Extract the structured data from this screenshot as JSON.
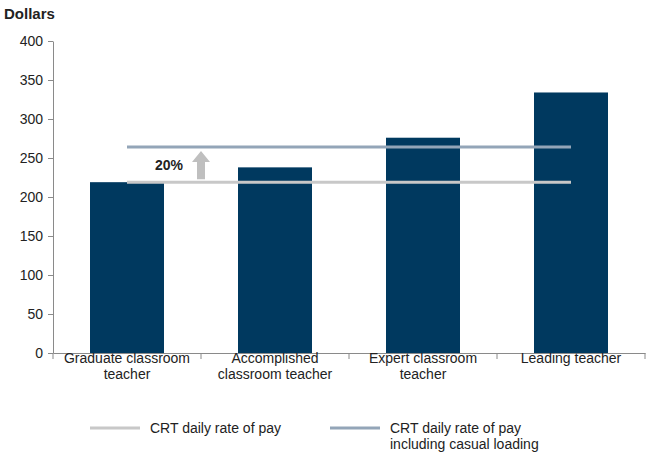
{
  "chart_data": {
    "type": "bar",
    "y_label": "Dollars",
    "categories": [
      "Graduate classroom teacher",
      "Accomplished classroom teacher",
      "Expert classroom teacher",
      "Leading teacher"
    ],
    "series": [
      {
        "type": "bar",
        "color": "#00395f",
        "values": [
          219,
          238,
          276,
          334
        ]
      },
      {
        "name": "CRT daily rate of pay",
        "type": "line",
        "color": "#c8c8c8",
        "values": [
          219,
          219,
          219,
          219
        ]
      },
      {
        "name": "CRT daily rate of pay including casual loading",
        "type": "line",
        "color": "#93a5b8",
        "values": [
          264,
          264,
          264,
          264
        ]
      }
    ],
    "annotations": [
      {
        "text": "20%"
      }
    ],
    "ylim": [
      0,
      400
    ],
    "yticks": [
      0,
      50,
      100,
      150,
      200,
      250,
      300,
      350,
      400
    ],
    "grid": false,
    "legend": "bottom"
  }
}
